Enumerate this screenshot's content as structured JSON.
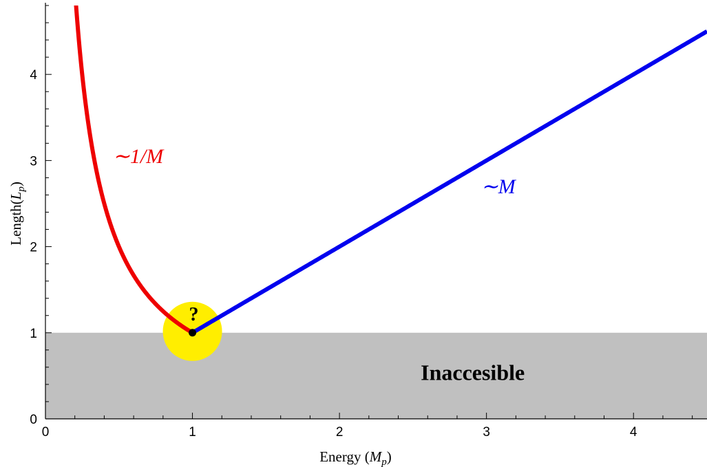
{
  "chart_data": {
    "type": "line",
    "title": "",
    "xlabel": "Energy (M_p)",
    "ylabel": "Length(L_p)",
    "xlabel_parts": {
      "main": "Energy (",
      "var": "M",
      "sub": "p",
      "close": ")"
    },
    "ylabel_parts": {
      "main": "Length(",
      "var": "L",
      "sub": "p",
      "close": ")"
    },
    "xlim": [
      0,
      4.5
    ],
    "ylim": [
      0,
      4.8
    ],
    "xticks": [
      0,
      1,
      2,
      3,
      4
    ],
    "yticks": [
      0,
      1,
      2,
      3,
      4
    ],
    "grid": false,
    "series": [
      {
        "function": "1/M",
        "color": "#ee0000",
        "x_range": [
          0.2,
          1.0
        ]
      },
      {
        "function": "M",
        "color": "#0000ee",
        "x_range": [
          1.0,
          4.5
        ]
      }
    ],
    "shaded_region": {
      "y_range": [
        0,
        1
      ],
      "color": "#c0c0c0",
      "label": "Inaccesible",
      "label_x": 3.0,
      "label_y": 0.53
    },
    "highlight": {
      "x": 1,
      "y": 1,
      "color": "#ffee00",
      "label": "?"
    },
    "annotations": [
      {
        "text": "~1/M",
        "display": "∼1/M",
        "x": 0.63,
        "y": 2.97,
        "color": "#ee0000"
      },
      {
        "text": "~M",
        "display": "∼M",
        "x": 3.08,
        "y": 2.62,
        "color": "#0000ee"
      }
    ]
  }
}
